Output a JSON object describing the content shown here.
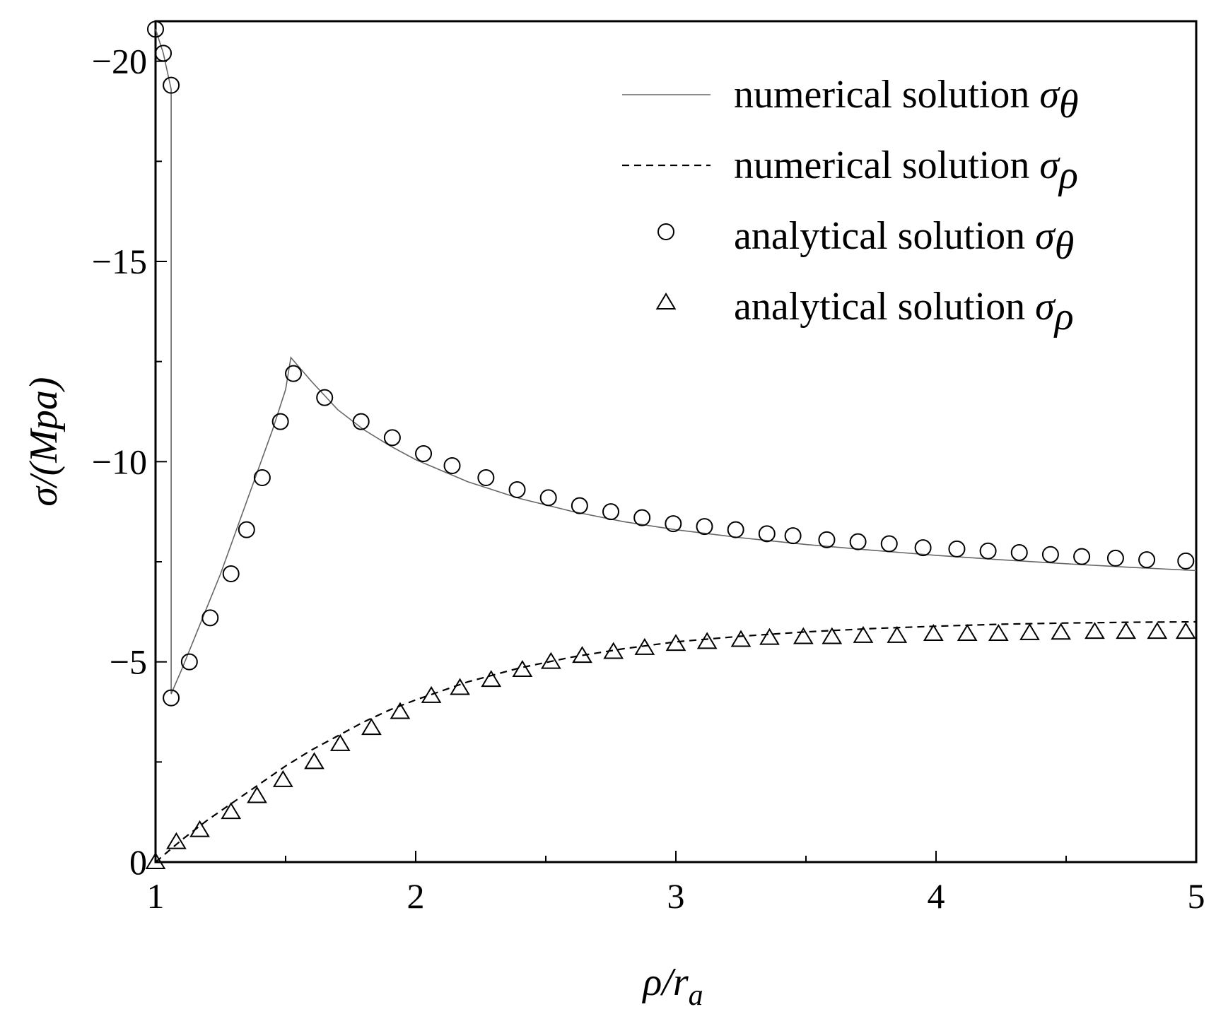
{
  "chart_data": {
    "type": "line",
    "title": "",
    "xlabel": {
      "main": "ρ/r",
      "sub": "a"
    },
    "ylabel": "σ/(Mpa)",
    "xlim": [
      1,
      5
    ],
    "ylim": [
      0,
      -21
    ],
    "y_axis_inverted": true,
    "x_ticks": [
      1,
      2,
      3,
      4,
      5
    ],
    "x_tick_labels": [
      "1",
      "2",
      "3",
      "4",
      "5"
    ],
    "x_minor_ticks": [
      1.5,
      2.5,
      3.5,
      4.5
    ],
    "y_ticks": [
      0,
      -5,
      -10,
      -15,
      -20
    ],
    "y_tick_labels": [
      "0",
      "−5",
      "−10",
      "−15",
      "−20"
    ],
    "y_minor_ticks": [
      -2.5,
      -7.5,
      -12.5,
      -17.5
    ],
    "grid": false,
    "legend_position": "top-right",
    "series": [
      {
        "name": "numerical solution σθ",
        "legend_text": "numerical solution ",
        "symbol": "σ",
        "subscript": "θ",
        "style": "solid",
        "color": "#666666",
        "x": [
          1.0,
          1.03,
          1.06,
          1.06,
          1.1,
          1.15,
          1.2,
          1.25,
          1.3,
          1.35,
          1.4,
          1.45,
          1.5,
          1.52,
          1.6,
          1.7,
          1.8,
          1.9,
          2.0,
          2.2,
          2.4,
          2.6,
          2.8,
          3.0,
          3.25,
          3.5,
          3.75,
          4.0,
          4.25,
          4.5,
          4.75,
          5.0
        ],
        "y": [
          -20.8,
          -20.2,
          -19.3,
          -4.2,
          -4.8,
          -5.6,
          -6.4,
          -7.2,
          -8.1,
          -9.0,
          -9.9,
          -10.8,
          -11.8,
          -12.6,
          -12.0,
          -11.3,
          -10.8,
          -10.4,
          -10.05,
          -9.5,
          -9.08,
          -8.76,
          -8.5,
          -8.3,
          -8.1,
          -7.93,
          -7.79,
          -7.66,
          -7.55,
          -7.45,
          -7.36,
          -7.28
        ]
      },
      {
        "name": "numerical solution σρ",
        "legend_text": "numerical solution ",
        "symbol": "σ",
        "subscript": "ρ",
        "style": "dashed",
        "color": "#000000",
        "x": [
          1.0,
          1.1,
          1.2,
          1.3,
          1.4,
          1.5,
          1.6,
          1.7,
          1.8,
          1.9,
          2.0,
          2.2,
          2.4,
          2.6,
          2.8,
          3.0,
          3.25,
          3.5,
          3.75,
          4.0,
          4.25,
          4.5,
          4.75,
          5.0
        ],
        "y": [
          0.0,
          -0.55,
          -1.05,
          -1.5,
          -1.95,
          -2.4,
          -2.8,
          -3.15,
          -3.5,
          -3.8,
          -4.05,
          -4.5,
          -4.85,
          -5.12,
          -5.33,
          -5.5,
          -5.64,
          -5.75,
          -5.83,
          -5.89,
          -5.94,
          -5.97,
          -5.99,
          -6.0
        ]
      },
      {
        "name": "analytical solution σθ",
        "legend_text": "analytical solution ",
        "symbol": "σ",
        "subscript": "θ",
        "style": "circle",
        "color": "#000000",
        "x": [
          1.0,
          1.03,
          1.06,
          1.06,
          1.13,
          1.21,
          1.29,
          1.35,
          1.41,
          1.48,
          1.53,
          1.65,
          1.79,
          1.91,
          2.03,
          2.14,
          2.27,
          2.39,
          2.51,
          2.63,
          2.75,
          2.87,
          2.99,
          3.11,
          3.23,
          3.35,
          3.45,
          3.58,
          3.7,
          3.82,
          3.95,
          4.08,
          4.2,
          4.32,
          4.44,
          4.56,
          4.69,
          4.81,
          4.96
        ],
        "y": [
          -20.8,
          -20.2,
          -19.4,
          -4.1,
          -5.0,
          -6.1,
          -7.2,
          -8.3,
          -9.6,
          -11.0,
          -12.2,
          -11.6,
          -11.0,
          -10.6,
          -10.2,
          -9.9,
          -9.6,
          -9.3,
          -9.1,
          -8.9,
          -8.75,
          -8.6,
          -8.45,
          -8.38,
          -8.3,
          -8.2,
          -8.15,
          -8.05,
          -8.0,
          -7.95,
          -7.85,
          -7.82,
          -7.77,
          -7.73,
          -7.68,
          -7.63,
          -7.59,
          -7.55,
          -7.52
        ]
      },
      {
        "name": "analytical solution σρ",
        "legend_text": "analytical solution ",
        "symbol": "σ",
        "subscript": "ρ",
        "style": "triangle",
        "color": "#000000",
        "x": [
          1.0,
          1.08,
          1.17,
          1.29,
          1.39,
          1.49,
          1.61,
          1.71,
          1.83,
          1.94,
          2.06,
          2.17,
          2.29,
          2.41,
          2.52,
          2.64,
          2.76,
          2.88,
          3.0,
          3.12,
          3.25,
          3.36,
          3.49,
          3.6,
          3.72,
          3.85,
          3.99,
          4.12,
          4.24,
          4.36,
          4.48,
          4.61,
          4.73,
          4.85,
          4.96
        ],
        "y": [
          0.0,
          -0.5,
          -0.8,
          -1.25,
          -1.65,
          -2.05,
          -2.5,
          -2.95,
          -3.35,
          -3.75,
          -4.15,
          -4.35,
          -4.55,
          -4.8,
          -5.0,
          -5.15,
          -5.25,
          -5.35,
          -5.45,
          -5.5,
          -5.55,
          -5.6,
          -5.62,
          -5.62,
          -5.65,
          -5.65,
          -5.7,
          -5.7,
          -5.7,
          -5.72,
          -5.73,
          -5.75,
          -5.75,
          -5.75,
          -5.75
        ]
      }
    ]
  }
}
